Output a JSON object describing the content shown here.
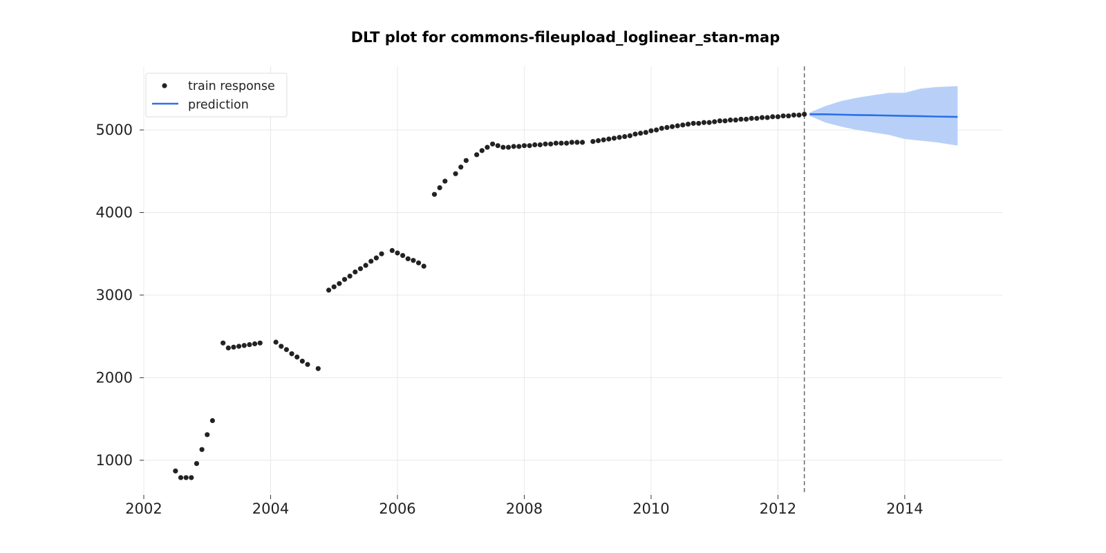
{
  "chart_data": {
    "type": "scatter",
    "title": "DLT plot for commons-fileupload_loglinear_stan-map",
    "xlabel": "",
    "ylabel": "",
    "x_axis_type": "time",
    "xlim": [
      "2002-01-01",
      "2015-07-15"
    ],
    "ylim": [
      580,
      5770
    ],
    "x_ticks": [
      "2002",
      "2004",
      "2006",
      "2008",
      "2010",
      "2012",
      "2014"
    ],
    "y_ticks": [
      1000,
      2000,
      3000,
      4000,
      5000
    ],
    "y_tick_labels": [
      "1000",
      "2000",
      "3000",
      "4000",
      "5000"
    ],
    "grid": true,
    "legend": {
      "position": "top-left",
      "entries": [
        "train response",
        "prediction"
      ]
    },
    "train_end_date": "2012-06-01",
    "colors": {
      "train": "#222222",
      "prediction": "#2a6fe8",
      "band": "#b8d0f8",
      "split_line": "#666666",
      "grid": "#e8e8e8"
    },
    "series": [
      {
        "name": "train response",
        "kind": "scatter",
        "points": [
          [
            "2002-07",
            870
          ],
          [
            "2002-08",
            790
          ],
          [
            "2002-09",
            790
          ],
          [
            "2002-10",
            790
          ],
          [
            "2002-11",
            960
          ],
          [
            "2002-12",
            1130
          ],
          [
            "2003-01",
            1310
          ],
          [
            "2003-02",
            1480
          ],
          [
            "2003-04",
            2420
          ],
          [
            "2003-05",
            2360
          ],
          [
            "2003-06",
            2370
          ],
          [
            "2003-07",
            2380
          ],
          [
            "2003-08",
            2390
          ],
          [
            "2003-09",
            2400
          ],
          [
            "2003-10",
            2410
          ],
          [
            "2003-11",
            2420
          ],
          [
            "2004-02",
            2430
          ],
          [
            "2004-03",
            2380
          ],
          [
            "2004-04",
            2340
          ],
          [
            "2004-05",
            2290
          ],
          [
            "2004-06",
            2250
          ],
          [
            "2004-07",
            2200
          ],
          [
            "2004-08",
            2160
          ],
          [
            "2004-10",
            2110
          ],
          [
            "2004-12",
            3060
          ],
          [
            "2005-01",
            3100
          ],
          [
            "2005-02",
            3140
          ],
          [
            "2005-03",
            3190
          ],
          [
            "2005-04",
            3230
          ],
          [
            "2005-05",
            3280
          ],
          [
            "2005-06",
            3320
          ],
          [
            "2005-07",
            3360
          ],
          [
            "2005-08",
            3410
          ],
          [
            "2005-09",
            3450
          ],
          [
            "2005-10",
            3500
          ],
          [
            "2005-12",
            3540
          ],
          [
            "2006-01",
            3510
          ],
          [
            "2006-02",
            3480
          ],
          [
            "2006-03",
            3440
          ],
          [
            "2006-04",
            3420
          ],
          [
            "2006-05",
            3390
          ],
          [
            "2006-06",
            3350
          ],
          [
            "2006-08",
            4220
          ],
          [
            "2006-09",
            4300
          ],
          [
            "2006-10",
            4380
          ],
          [
            "2006-12",
            4470
          ],
          [
            "2007-01",
            4550
          ],
          [
            "2007-02",
            4630
          ],
          [
            "2007-04",
            4700
          ],
          [
            "2007-05",
            4750
          ],
          [
            "2007-06",
            4790
          ],
          [
            "2007-07",
            4830
          ],
          [
            "2007-08",
            4810
          ],
          [
            "2007-09",
            4790
          ],
          [
            "2007-10",
            4790
          ],
          [
            "2007-11",
            4800
          ],
          [
            "2007-12",
            4800
          ],
          [
            "2008-01",
            4810
          ],
          [
            "2008-02",
            4810
          ],
          [
            "2008-03",
            4820
          ],
          [
            "2008-04",
            4820
          ],
          [
            "2008-05",
            4830
          ],
          [
            "2008-06",
            4830
          ],
          [
            "2008-07",
            4840
          ],
          [
            "2008-08",
            4840
          ],
          [
            "2008-09",
            4840
          ],
          [
            "2008-10",
            4850
          ],
          [
            "2008-11",
            4850
          ],
          [
            "2008-12",
            4850
          ],
          [
            "2009-02",
            4860
          ],
          [
            "2009-03",
            4870
          ],
          [
            "2009-04",
            4880
          ],
          [
            "2009-05",
            4890
          ],
          [
            "2009-06",
            4900
          ],
          [
            "2009-07",
            4910
          ],
          [
            "2009-08",
            4920
          ],
          [
            "2009-09",
            4930
          ],
          [
            "2009-10",
            4950
          ],
          [
            "2009-11",
            4960
          ],
          [
            "2009-12",
            4970
          ],
          [
            "2010-01",
            4990
          ],
          [
            "2010-02",
            5000
          ],
          [
            "2010-03",
            5020
          ],
          [
            "2010-04",
            5030
          ],
          [
            "2010-05",
            5040
          ],
          [
            "2010-06",
            5050
          ],
          [
            "2010-07",
            5060
          ],
          [
            "2010-08",
            5070
          ],
          [
            "2010-09",
            5080
          ],
          [
            "2010-10",
            5080
          ],
          [
            "2010-11",
            5090
          ],
          [
            "2010-12",
            5090
          ],
          [
            "2011-01",
            5100
          ],
          [
            "2011-02",
            5110
          ],
          [
            "2011-03",
            5110
          ],
          [
            "2011-04",
            5120
          ],
          [
            "2011-05",
            5120
          ],
          [
            "2011-06",
            5130
          ],
          [
            "2011-07",
            5130
          ],
          [
            "2011-08",
            5140
          ],
          [
            "2011-09",
            5140
          ],
          [
            "2011-10",
            5150
          ],
          [
            "2011-11",
            5150
          ],
          [
            "2011-12",
            5160
          ],
          [
            "2012-01",
            5160
          ],
          [
            "2012-02",
            5170
          ],
          [
            "2012-03",
            5170
          ],
          [
            "2012-04",
            5180
          ],
          [
            "2012-05",
            5180
          ],
          [
            "2012-06",
            5190
          ]
        ]
      },
      {
        "name": "prediction",
        "kind": "line",
        "points": [
          [
            "2012-07",
            5190
          ],
          [
            "2012-10",
            5190
          ],
          [
            "2013-01",
            5185
          ],
          [
            "2013-04",
            5180
          ],
          [
            "2013-07",
            5178
          ],
          [
            "2013-10",
            5174
          ],
          [
            "2014-01",
            5170
          ],
          [
            "2014-04",
            5167
          ],
          [
            "2014-07",
            5162
          ],
          [
            "2014-11",
            5158
          ]
        ],
        "band_upper": [
          5210,
          5290,
          5350,
          5390,
          5420,
          5450,
          5450,
          5500,
          5520,
          5530
        ],
        "band_lower": [
          5170,
          5090,
          5040,
          5000,
          4970,
          4940,
          4890,
          4870,
          4850,
          4810
        ]
      }
    ]
  }
}
